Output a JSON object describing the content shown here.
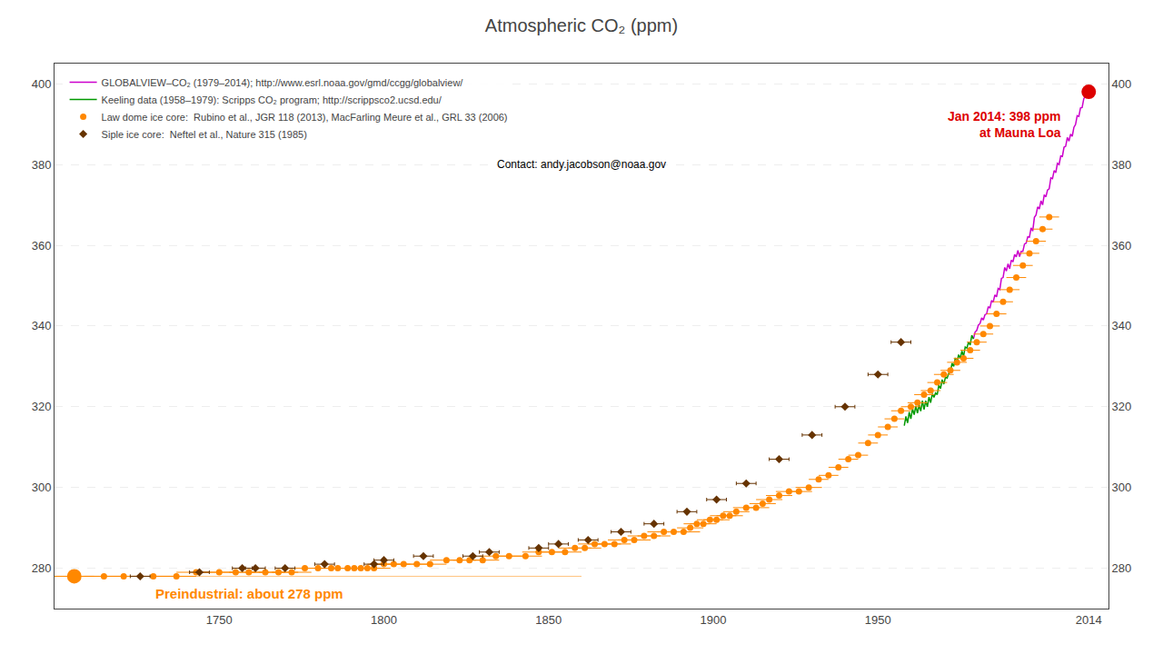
{
  "chart_data": {
    "type": "line",
    "title": "Atmospheric CO₂ (ppm)",
    "xlim": [
      1700,
      2020
    ],
    "xticks": [
      1750,
      1800,
      1850,
      1900,
      1950,
      2014
    ],
    "ylim": [
      270,
      405
    ],
    "yticks": [
      280,
      300,
      320,
      340,
      360,
      380,
      400
    ],
    "y2lim": [
      270,
      405
    ],
    "y2ticks": [
      280,
      300,
      320,
      340,
      360,
      380,
      400
    ],
    "grid": true,
    "legend": "upper left",
    "series": [
      {
        "name": "GLOBALVIEW–CO₂ (1979–2014); http://www.esrl.noaa.gov/gmd/ccgg/globalview/",
        "type": "line",
        "color": "#cc00cc",
        "line_style": "solid",
        "x": [
          1979.0,
          1979.5,
          1980.0,
          1980.5,
          1981.0,
          1981.5,
          1982.0,
          1982.5,
          1983.0,
          1983.5,
          1984.0,
          1984.5,
          1985.0,
          1985.5,
          1986.0,
          1986.5,
          1987.0,
          1987.5,
          1988.0,
          1988.5,
          1989.0,
          1989.5,
          1990.0,
          1990.5,
          1991.0,
          1991.5,
          1992.0,
          1992.5,
          1993.0,
          1993.5,
          1994.0,
          1994.5,
          1995.0,
          1995.5,
          1996.0,
          1996.5,
          1997.0,
          1997.5,
          1998.0,
          1998.5,
          1999.0,
          1999.5,
          2000.0,
          2000.5,
          2001.0,
          2001.5,
          2002.0,
          2002.5,
          2003.0,
          2003.5,
          2004.0,
          2004.5,
          2005.0,
          2005.5,
          2006.0,
          2006.5,
          2007.0,
          2007.5,
          2008.0,
          2008.5,
          2009.0,
          2009.5,
          2010.0,
          2010.5,
          2011.0,
          2011.5,
          2012.0,
          2012.5,
          2013.0,
          2013.5,
          2014.0
        ],
        "values": [
          336.8,
          338.5,
          338.9,
          340.2,
          340.6,
          342.0,
          341.5,
          342.8,
          343.0,
          344.8,
          344.4,
          346.3,
          345.9,
          347.7,
          347.2,
          349.3,
          349.0,
          351.8,
          352.0,
          354.5,
          353.6,
          355.4,
          354.2,
          356.3,
          355.9,
          357.7,
          357.1,
          358.7,
          357.2,
          358.5,
          358.5,
          360.3,
          360.5,
          362.1,
          362.0,
          364.3,
          363.5,
          366.9,
          367.5,
          369.5,
          369.0,
          371.0,
          370.0,
          372.5,
          372.0,
          373.7,
          374.0,
          376.7,
          376.5,
          378.5,
          378.0,
          380.3,
          380.0,
          382.1,
          382.0,
          384.3,
          384.5,
          386.7,
          385.8,
          387.5,
          387.0,
          389.2,
          389.9,
          392.1,
          391.9,
          394.0,
          394.1,
          396.3,
          396.9,
          399.0,
          398.0
        ]
      },
      {
        "name": "Keeling data (1958–1979): Scripps CO₂ program; http://scrippsco2.ucsd.edu/",
        "type": "line",
        "color": "#009900",
        "line_style": "solid",
        "x": [
          1958.0,
          1958.5,
          1959.0,
          1959.5,
          1960.0,
          1960.5,
          1961.0,
          1961.5,
          1962.0,
          1962.5,
          1963.0,
          1963.5,
          1964.0,
          1964.5,
          1965.0,
          1965.5,
          1966.0,
          1966.5,
          1967.0,
          1967.5,
          1968.0,
          1968.5,
          1969.0,
          1969.5,
          1970.0,
          1970.5,
          1971.0,
          1971.5,
          1972.0,
          1972.5,
          1973.0,
          1973.5,
          1974.0,
          1974.5,
          1975.0,
          1975.5,
          1976.0,
          1976.5,
          1977.0,
          1977.5,
          1978.0,
          1978.5,
          1979.0
        ],
        "values": [
          315.3,
          317.6,
          316.0,
          318.7,
          317.0,
          319.5,
          318.0,
          320.2,
          318.4,
          320.4,
          318.9,
          321.5,
          319.3,
          321.5,
          320.0,
          322.4,
          321.0,
          323.2,
          322.3,
          323.4,
          323.0,
          325.3,
          324.5,
          326.7,
          325.6,
          327.3,
          327.1,
          328.2,
          328.5,
          330.8,
          330.0,
          332.1,
          331.0,
          332.9,
          332.0,
          333.8,
          332.5,
          334.8,
          334.5,
          336.0,
          335.3,
          337.7,
          336.8
        ]
      },
      {
        "name": "Law dome ice core:  Rubino et al., JGR 118 (2013), MacFarling Meure et al., GRL 33 (2006)",
        "type": "scatter",
        "color": "#ff8800",
        "marker": "circle",
        "x": [
          1706,
          1715,
          1721,
          1730,
          1737,
          1743,
          1750,
          1755,
          1759,
          1764,
          1768,
          1772,
          1776,
          1780,
          1784,
          1786,
          1789,
          1791,
          1793,
          1795,
          1797,
          1800,
          1803,
          1806,
          1810,
          1814,
          1819,
          1823,
          1826,
          1830,
          1834,
          1838,
          1843,
          1847,
          1851,
          1855,
          1858,
          1861,
          1864,
          1867,
          1870,
          1873,
          1876,
          1879,
          1882,
          1885,
          1888,
          1891,
          1893,
          1895,
          1897,
          1899,
          1901,
          1903,
          1905,
          1907,
          1910,
          1913,
          1915,
          1917,
          1920,
          1923,
          1926,
          1929,
          1932,
          1935,
          1938,
          1941,
          1944,
          1947,
          1950,
          1953,
          1955,
          1957,
          1960,
          1962,
          1964,
          1966,
          1968,
          1970,
          1972,
          1974,
          1976,
          1978,
          1980,
          1982,
          1984,
          1986,
          1988,
          1990,
          1992,
          1994,
          1996,
          1998,
          2000,
          2002
        ],
        "values": [
          278,
          278,
          278,
          278,
          278,
          279,
          279,
          279,
          279,
          279,
          279,
          279,
          280,
          280,
          280,
          280,
          280,
          280,
          280,
          280,
          280,
          281,
          281,
          281,
          281,
          281,
          282,
          282,
          282,
          282,
          283,
          283,
          283,
          284,
          284,
          284,
          285,
          285,
          286,
          286,
          286,
          287,
          287,
          288,
          288,
          289,
          289,
          289,
          290,
          291,
          291,
          292,
          292,
          293,
          293,
          294,
          295,
          295,
          296,
          297,
          298,
          299,
          299,
          300,
          302,
          303,
          305,
          307,
          308,
          311,
          313,
          315,
          317,
          319,
          320,
          321,
          323,
          324,
          326,
          328,
          329,
          331,
          332,
          334,
          336,
          338,
          340,
          343,
          346,
          349,
          352,
          355,
          358,
          361,
          364,
          367
        ],
        "xerr": [
          6,
          6,
          6,
          6,
          6,
          6,
          6,
          6,
          6,
          6,
          6,
          6,
          6,
          5,
          5,
          5,
          5,
          5,
          5,
          5,
          5,
          5,
          5,
          5,
          5,
          5,
          5,
          5,
          5,
          5,
          5,
          5,
          5,
          5,
          5,
          5,
          5,
          5,
          5,
          5,
          5,
          5,
          5,
          5,
          5,
          5,
          5,
          5,
          4,
          4,
          4,
          4,
          4,
          4,
          4,
          4,
          4,
          4,
          4,
          4,
          4,
          4,
          4,
          4,
          3,
          3,
          3,
          3,
          3,
          3,
          3,
          3,
          3,
          3,
          3,
          3,
          3,
          3,
          3,
          3,
          3,
          3,
          3,
          3,
          3,
          3,
          3,
          3,
          3,
          3,
          3,
          3,
          3,
          3,
          3,
          3
        ]
      },
      {
        "name": "Siple ice core:  Neftel et al., Nature 315 (1985)",
        "type": "scatter",
        "color": "#663300",
        "marker": "diamond",
        "x": [
          1726,
          1744,
          1757,
          1761,
          1770,
          1782,
          1797,
          1800,
          1812,
          1827,
          1832,
          1847,
          1853,
          1862,
          1872,
          1882,
          1892,
          1901,
          1910,
          1920,
          1930,
          1940,
          1950,
          1957
        ],
        "values": [
          278,
          279,
          280,
          280,
          280,
          281,
          281,
          282,
          283,
          283,
          284,
          285,
          286,
          287,
          289,
          291,
          294,
          297,
          301,
          307,
          313,
          320,
          328,
          336
        ],
        "xerr": [
          3,
          3,
          3,
          3,
          3,
          3,
          3,
          3,
          3,
          3,
          3,
          3,
          3,
          3,
          3,
          3,
          3,
          3,
          3,
          3,
          3,
          3,
          3,
          3
        ]
      }
    ],
    "annotations": [
      {
        "text": "Jan 2014: 398 ppm\nat Mauna Loa",
        "x": 2014,
        "y": 398,
        "color": "#dd0000"
      },
      {
        "text": "Preindustrial: about 278 ppm",
        "x": 1706,
        "y": 278,
        "text_x": 1730,
        "text_y": 276,
        "color": "#ff8800",
        "line_style": "solid"
      },
      {
        "text": "Contact: andy.jacobson@noaa.gov"
      }
    ]
  }
}
